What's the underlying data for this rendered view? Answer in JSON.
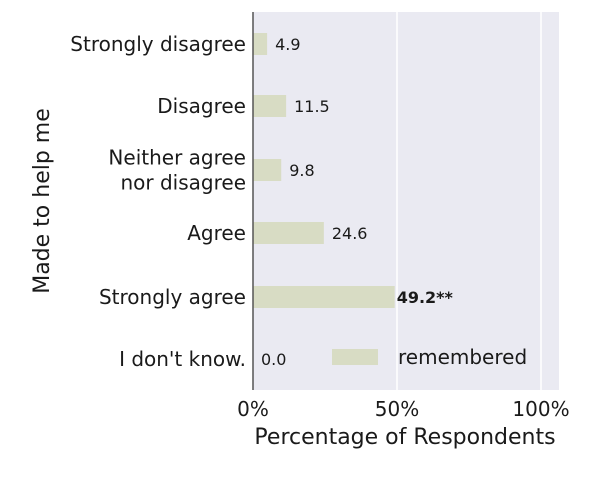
{
  "chart_data": {
    "type": "bar",
    "orientation": "horizontal",
    "categories": [
      "Strongly disagree",
      "Disagree",
      "Neither agree\nnor disagree",
      "Agree",
      "Strongly agree",
      "I don't know."
    ],
    "series": [
      {
        "name": "remembered",
        "values": [
          4.9,
          11.5,
          9.8,
          24.6,
          49.2,
          0.0
        ],
        "labels": [
          "4.9",
          "11.5",
          "9.8",
          "24.6",
          "49.2**",
          "0.0"
        ],
        "bold_labels": [
          false,
          false,
          false,
          false,
          true,
          false
        ],
        "color": "#d8dcc4"
      }
    ],
    "xlabel": "Percentage of Respondents",
    "ylabel": "Made to help me",
    "xlim": [
      0,
      100
    ],
    "xticks": [
      0,
      50,
      100
    ],
    "xtick_labels": [
      "0%",
      "50%",
      "100%"
    ],
    "grid": true,
    "legend": {
      "placement": "bottom-right"
    },
    "colors": {
      "plot_bg": "#eaeaf2",
      "grid": "#ffffff",
      "axis_line": "#555555"
    }
  }
}
